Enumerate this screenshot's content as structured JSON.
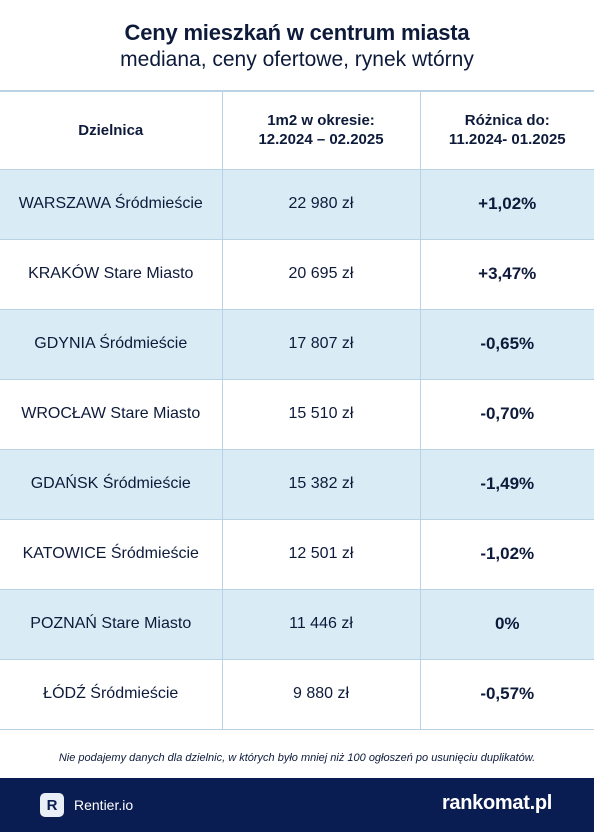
{
  "header": {
    "title": "Ceny mieszkań w centrum miasta",
    "subtitle": "mediana, ceny ofertowe, rynek wtórny"
  },
  "table": {
    "columns": {
      "district": "Dzielnica",
      "price_line1": "1m2 w okresie:",
      "price_line2": "12.2024 – 02.2025",
      "diff_line1": "Różnica do:",
      "diff_line2": "11.2024- 01.2025"
    },
    "rows": [
      {
        "district": "WARSZAWA Śródmieście",
        "price": "22 980 zł",
        "diff": "+1,02%"
      },
      {
        "district": "KRAKÓW Stare Miasto",
        "price": "20 695 zł",
        "diff": "+3,47%"
      },
      {
        "district": "GDYNIA Śródmieście",
        "price": "17 807 zł",
        "diff": "-0,65%"
      },
      {
        "district": "WROCŁAW Stare Miasto",
        "price": "15 510 zł",
        "diff": "-0,70%"
      },
      {
        "district": "GDAŃSK Śródmieście",
        "price": "15 382 zł",
        "diff": "-1,49%"
      },
      {
        "district": "KATOWICE Śródmieście",
        "price": "12 501 zł",
        "diff": "-1,02%"
      },
      {
        "district": "POZNAŃ Stare Miasto",
        "price": "11 446 zł",
        "diff": "0%"
      },
      {
        "district": "ŁÓDŹ Śródmieście",
        "price": "9 880 zł",
        "diff": "-0,57%"
      }
    ]
  },
  "footnote": "Nie podajemy danych dla dzielnic, w których było mniej niż 100 ogłoszeń po usunięciu duplikatów.",
  "footer": {
    "rentier_logo_letter": "R",
    "rentier_label": "Rentier.io",
    "rankomat_label": "rankomat.pl"
  },
  "colors": {
    "text": "#0d1a3a",
    "row_shade": "#d9ecf6",
    "grid_line": "#b9d3e4",
    "footer_bg": "#0a1d52"
  }
}
